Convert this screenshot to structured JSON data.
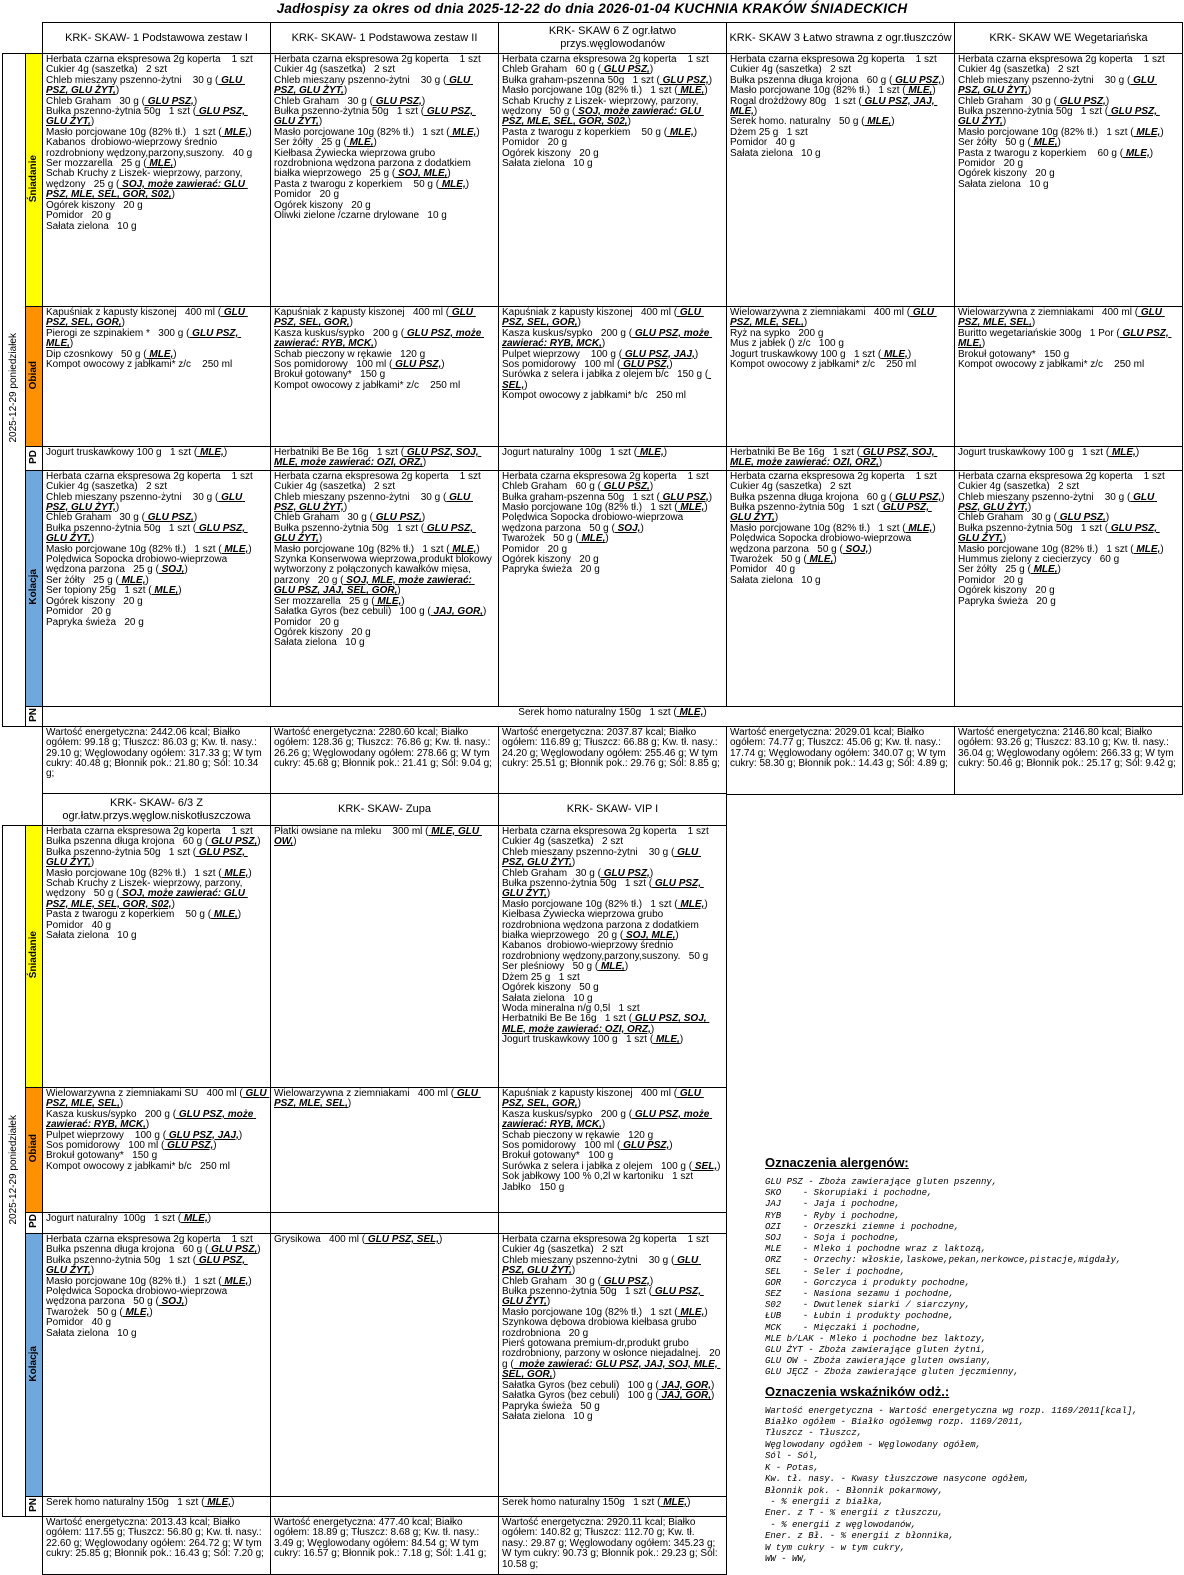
{
  "title": "Jadłospisy  za okres od dnia 2025-12-22 do dnia 2026-01-04 KUCHNIA KRAKÓW ŚNIADECKICH",
  "colors": {
    "sniadanie": "#FFFF00",
    "obiad": "#FF9000",
    "kolacja": "#6FA8DC",
    "plain": "#FFFFFF"
  },
  "sections": [
    {
      "date_label": "2025-12-29 poniedziałek",
      "columns": [
        "KRK- SKAW- 1 Podstawowa zestaw I",
        "KRK- SKAW- 1 Podstawowa zestaw II",
        "KRK- SKAW 6 Z ogr.łatwo przys.węglowodanów",
        "KRK- SKAW 3 Łatwo strawna z ogr.tłuszczów",
        "KRK- SKAW WE Wegetariańska"
      ],
      "meals": [
        {
          "label": "Śniadanie",
          "color_key": "sniadanie",
          "merged": false,
          "cells": [
            [
              "Herbata czarna ekspresowa 2g koperta    1 szt",
              "Cukier 4g (saszetka)   2 szt",
              "Chleb mieszany pszenno-żytni    30 g ( GLU PSZ, GLU ŻYT,)",
              "Chleb Graham   30 g ( GLU PSZ,)",
              "Bułka pszenno-żytnia 50g   1 szt ( GLU PSZ, GLU ŻYT,)",
              "Masło porcjowane 10g (82% tł.)   1 szt ( MLE,)",
              "Kabanos  drobiowo-wieprzowy średnio rozdrobniony wędzony,parzony,suszony.   40 g",
              "Ser mozzarella   25 g ( MLE,)",
              "Schab Kruchy z Liszek- wieprzowy, parzony, wędzony   25 g ( SOJ, może zawierać: GLU PSZ, MLE, SEL, GOR, S02,)",
              "Ogórek kiszony   20 g",
              "Pomidor   20 g",
              "Sałata zielona   10 g"
            ],
            [
              "Herbata czarna ekspresowa 2g koperta    1 szt",
              "Cukier 4g (saszetka)   2 szt",
              "Chleb mieszany pszenno-żytni    30 g ( GLU PSZ, GLU ŻYT,)",
              "Chleb Graham   30 g ( GLU PSZ,)",
              "Bułka pszenno-żytnia 50g   1 szt ( GLU PSZ, GLU ŻYT,)",
              "Masło porcjowane 10g (82% tł.)   1 szt ( MLE,)",
              "Ser żółty   25 g ( MLE,)",
              "Kiełbasa Żywiecka wieprzowa grubo rozdrobniona wędzona parzona z dodatkiem białka wieprzowego   25 g ( SOJ, MLE,)",
              "Pasta z twarogu z koperkiem    50 g ( MLE,)",
              "Pomidor   20 g",
              "Ogórek kiszony   20 g",
              "Oliwki zielone /czarne drylowane   10 g"
            ],
            [
              "Herbata czarna ekspresowa 2g koperta    1 szt",
              "Chleb Graham   60 g ( GLU PSZ,)",
              "Bułka graham-pszenna 50g   1 szt ( GLU PSZ,)",
              "Masło porcjowane 10g (82% tł.)   1 szt ( MLE,)",
              "Schab Kruchy z Liszek- wieprzowy, parzony, wędzony   50 g ( SOJ, może zawierać: GLU PSZ, MLE, SEL, GOR, S02,)",
              "Pasta z twarogu z koperkiem    50 g ( MLE,)",
              "Pomidor   20 g",
              "Ogórek kiszony   20 g",
              "Sałata zielona   10 g"
            ],
            [
              "Herbata czarna ekspresowa 2g koperta    1 szt",
              "Cukier 4g (saszetka)   2 szt",
              "Bułka pszenna długa krojona   60 g ( GLU PSZ,)",
              "Masło porcjowane 10g (82% tł.)   1 szt ( MLE,)",
              "Rogal drożdżowy 80g   1 szt ( GLU PSZ, JAJ, MLE,)",
              "Serek homo. naturalny   50 g ( MLE,)",
              "Dżem 25 g   1 szt",
              "Pomidor   40 g",
              "Sałata zielona   10 g"
            ],
            [
              "Herbata czarna ekspresowa 2g koperta    1 szt",
              "Cukier 4g (saszetka)   2 szt",
              "Chleb mieszany pszenno-żytni    30 g ( GLU PSZ, GLU ŻYT,)",
              "Chleb Graham   30 g ( GLU PSZ,)",
              "Bułka pszenno-żytnia 50g   1 szt ( GLU PSZ, GLU ŻYT,)",
              "Masło porcjowane 10g (82% tł.)   1 szt ( MLE,)",
              "Ser żółty   50 g ( MLE,)",
              "Pasta z twarogu z koperkiem    60 g ( MLE,)",
              "Pomidor   20 g",
              "Ogórek kiszony   20 g",
              "Sałata zielona   10 g"
            ]
          ]
        },
        {
          "label": "Obiad",
          "color_key": "obiad",
          "merged": false,
          "cells": [
            [
              "Kapuśniak z kapusty kiszonej   400 ml ( GLU PSZ, SEL, GOR,)",
              "Pierogi ze szpinakiem *   300 g ( GLU PSZ, MLE,)",
              "Dip czosnkowy   50 g ( MLE,)",
              "Kompot owocowy z jabłkami* z/c    250 ml"
            ],
            [
              "Kapuśniak z kapusty kiszonej   400 ml ( GLU PSZ, SEL, GOR,)",
              "Kasza kuskus/sypko   200 g ( GLU PSZ, może zawierać: RYB, MCK,)",
              "Schab pieczony w rękawie   120 g",
              "Sos pomidorowy   100 ml ( GLU PSZ,)",
              "Brokuł gotowany*   150 g",
              "Kompot owocowy z jabłkami* z/c    250 ml"
            ],
            [
              "Kapuśniak z kapusty kiszonej   400 ml ( GLU PSZ, SEL, GOR,)",
              "Kasza kuskus/sypko   200 g ( GLU PSZ, może zawierać: RYB, MCK,)",
              "Pulpet wieprzowy    100 g ( GLU PSZ, JAJ,)",
              "Sos pomidorowy   100 ml ( GLU PSZ,)",
              "Surówka z selera i jabłka z olejem b/c   150 g ( SEL,)",
              "Kompot owocowy z jabłkami* b/c   250 ml"
            ],
            [
              "Wielowarzywna z ziemniakami   400 ml ( GLU PSZ, MLE, SEL,)",
              "Ryż na sypko   200 g",
              "Mus z jabłek () z/c   100 g",
              "Jogurt truskawkowy 100 g   1 szt ( MLE,)",
              "Kompot owocowy z jabłkami* z/c    250 ml"
            ],
            [
              "Wielowarzywna z ziemniakami   400 ml ( GLU PSZ, MLE, SEL,)",
              "Buritto wegetariańskie 300g   1 Por ( GLU PSZ, MLE,)",
              "Brokuł gotowany*   150 g",
              "Kompot owocowy z jabłkami* z/c    250 ml"
            ]
          ]
        },
        {
          "label": "PD",
          "color_key": "plain",
          "merged": false,
          "cells": [
            [
              "Jogurt truskawkowy 100 g   1 szt ( MLE,)"
            ],
            [
              "Herbatniki Be Be 16g   1 szt ( GLU PSZ, SOJ, MLE, może zawierać: OZI, ORZ,)"
            ],
            [
              "Jogurt naturalny  100g   1 szt ( MLE,)"
            ],
            [
              "Herbatniki Be Be 16g   1 szt ( GLU PSZ, SOJ, MLE, może zawierać: OZI, ORZ,)"
            ],
            [
              "Jogurt truskawkowy 100 g   1 szt ( MLE,)"
            ]
          ]
        },
        {
          "label": "Kolacja",
          "color_key": "kolacja",
          "merged": false,
          "cells": [
            [
              "Herbata czarna ekspresowa 2g koperta    1 szt",
              "Cukier 4g (saszetka)   2 szt",
              "Chleb mieszany pszenno-żytni    30 g ( GLU PSZ, GLU ŻYT,)",
              "Chleb Graham   30 g ( GLU PSZ,)",
              "Bułka pszenno-żytnia 50g   1 szt ( GLU PSZ, GLU ŻYT,)",
              "Masło porcjowane 10g (82% tł.)   1 szt ( MLE,)",
              "Polędwica Sopocka drobiowo-wieprzowa wędzona parzona   25 g ( SOJ,)",
              "Ser żółty   25 g ( MLE,)",
              "Ser topiony 25g   1 szt ( MLE,)",
              "Ogórek kiszony   20 g",
              "Pomidor   20 g",
              "Papryka świeża   20 g"
            ],
            [
              "Herbata czarna ekspresowa 2g koperta    1 szt",
              "Cukier 4g (saszetka)   2 szt",
              "Chleb mieszany pszenno-żytni    30 g ( GLU PSZ, GLU ŻYT,)",
              "Chleb Graham   30 g ( GLU PSZ,)",
              "Bułka pszenno-żytnia 50g   1 szt ( GLU PSZ, GLU ŻYT,)",
              "Masło porcjowane 10g (82% tł.)   1 szt ( MLE,)",
              "Szynka Konserwowa wieprzowa,produkt blokowy wytworzony z połączonych kawałków mięsa, parzony   20 g ( SOJ, MLE, może zawierać: GLU PSZ, JAJ, SEL, GOR,)",
              "Ser mozzarella   25 g ( MLE,)",
              "Sałatka Gyros (bez cebuli)   100 g ( JAJ, GOR,)",
              "Pomidor   20 g",
              "Ogórek kiszony   20 g",
              "Sałata zielona   10 g"
            ],
            [
              "Herbata czarna ekspresowa 2g koperta    1 szt",
              "Chleb Graham   60 g ( GLU PSZ,)",
              "Bułka graham-pszenna 50g   1 szt ( GLU PSZ,)",
              "Masło porcjowane 10g (82% tł.)   1 szt ( MLE,)",
              "Polędwica Sopocka drobiowo-wieprzowa wędzona parzona   50 g ( SOJ,)",
              "Twarożek   50 g ( MLE,)",
              "Pomidor   20 g",
              "Ogórek kiszony   20 g",
              "Papryka świeża   20 g"
            ],
            [
              "Herbata czarna ekspresowa 2g koperta    1 szt",
              "Cukier 4g (saszetka)   2 szt",
              "Bułka pszenna długa krojona   60 g ( GLU PSZ,)",
              "Bułka pszenno-żytnia 50g   1 szt ( GLU PSZ, GLU ŻYT,)",
              "Masło porcjowane 10g (82% tł.)   1 szt ( MLE,)",
              "Polędwica Sopocka drobiowo-wieprzowa wędzona parzona   50 g ( SOJ,)",
              "Twarożek   50 g ( MLE,)",
              "Pomidor   40 g",
              "Sałata zielona   10 g"
            ],
            [
              "Herbata czarna ekspresowa 2g koperta    1 szt",
              "Cukier 4g (saszetka)   2 szt",
              "Chleb mieszany pszenno-żytni    30 g ( GLU PSZ, GLU ŻYT,)",
              "Chleb Graham   30 g ( GLU PSZ,)",
              "Bułka pszenno-żytnia 50g   1 szt ( GLU PSZ, GLU ŻYT,)",
              "Masło porcjowane 10g (82% tł.)   1 szt ( MLE,)",
              "Hummus zielony z ciecierzycy   60 g",
              "Ser żółty   25 g ( MLE,)",
              "Pomidor   20 g",
              "Ogórek kiszony   20 g",
              "Papryka świeża   20 g"
            ]
          ]
        },
        {
          "label": "PN",
          "color_key": "plain",
          "merged": true,
          "cells": [
            [
              "Serek homo naturalny 150g   1 szt ( MLE,)"
            ]
          ]
        }
      ],
      "nutrition": [
        "Wartość energetyczna: 2442.06 kcal; Białko ogółem: 99.18 g; Tłuszcz: 86.03 g; Kw. tł. nasy.: 29.10 g; Węglowodany ogółem: 317.33 g; W tym cukry: 40.48 g; Błonnik pok.: 21.80 g; Sól: 10.34 g;",
        "Wartość energetyczna: 2280.60 kcal; Białko ogółem: 128.36 g; Tłuszcz: 76.86 g; Kw. tł. nasy.: 26.26 g; Węglowodany ogółem: 278.66 g; W tym cukry: 45.68 g; Błonnik pok.: 21.41 g; Sól: 9.04 g;",
        "Wartość energetyczna: 2037.87 kcal; Białko ogółem: 116.89 g; Tłuszcz: 66.88 g; Kw. tł. nasy.: 24.20 g; Węglowodany ogółem: 255.46 g; W tym cukry: 25.51 g; Błonnik pok.: 29.76 g; Sól: 8.85 g;",
        "Wartość energetyczna: 2029.01 kcal; Białko ogółem: 74.77 g; Tłuszcz: 45.06 g; Kw. tł. nasy.: 17.74 g; Węglowodany ogółem: 340.07 g; W tym cukry: 58.30 g; Błonnik pok.: 14.43 g; Sól: 4.89 g;",
        "Wartość energetyczna: 2146.80 kcal; Białko ogółem: 93.26 g; Tłuszcz: 83.10 g; Kw. tł. nasy.: 36.04 g; Węglowodany ogółem: 266.33 g; W tym cukry: 50.46 g; Błonnik pok.: 25.17 g; Sól: 9.42 g;"
      ]
    },
    {
      "date_label": "2025-12-29 poniedziałek",
      "columns": [
        "KRK- SKAW- 6/3 Z ogr.łatw.przys.węglow.niskotłuszczowa",
        "KRK- SKAW- Zupa",
        "KRK- SKAW- VIP I"
      ],
      "meals": [
        {
          "label": "Śniadanie",
          "color_key": "sniadanie",
          "merged": false,
          "cells": [
            [
              "Herbata czarna ekspresowa 2g koperta    1 szt",
              "Bułka pszenna długa krojona   60 g ( GLU PSZ,)",
              "Bułka pszenno-żytnia 50g   1 szt ( GLU PSZ, GLU ŻYT,)",
              "Masło porcjowane 10g (82% tł.)   1 szt ( MLE,)",
              "Schab Kruchy z Liszek- wieprzowy, parzony, wędzony   50 g ( SOJ, może zawierać: GLU PSZ, MLE, SEL, GOR, S02,)",
              "Pasta z twarogu z koperkiem    50 g ( MLE,)",
              "Pomidor   40 g",
              "Sałata zielona   10 g"
            ],
            [
              "Płatki owsiane na mleku    300 ml ( MLE, GLU OW,)"
            ],
            [
              "Herbata czarna ekspresowa 2g koperta    1 szt",
              "Cukier 4g (saszetka)   2 szt",
              "Chleb mieszany pszenno-żytni    30 g ( GLU PSZ, GLU ŻYT,)",
              "Chleb Graham   30 g ( GLU PSZ,)",
              "Bułka pszenno-żytnia 50g   1 szt ( GLU PSZ, GLU ŻYT,)",
              "Masło porcjowane 10g (82% tł.)   1 szt ( MLE,)",
              "Kiełbasa Żywiecka wieprzowa grubo rozdrobniona wędzona parzona z dodatkiem białka wieprzowego   20 g ( SOJ, MLE,)",
              "Kabanos  drobiowo-wieprzowy średnio rozdrobniony wędzony,parzony,suszony.   50 g",
              "Ser pleśniowy   50 g ( MLE,)",
              "Dżem 25 g   1 szt",
              "Ogórek kiszony   50 g",
              "Sałata zielona   10 g",
              "Woda mineralna n/g 0,5l   1 szt",
              "Herbatniki Be Be 16g   1 szt ( GLU PSZ, SOJ, MLE, może zawierać: OZI, ORZ,)",
              "Jogurt truskawkowy 100 g   1 szt ( MLE,)"
            ]
          ]
        },
        {
          "label": "Obiad",
          "color_key": "obiad",
          "merged": false,
          "cells": [
            [
              "Wielowarzywna z ziemniakami SU   400 ml ( GLU PSZ, MLE, SEL,)",
              "Kasza kuskus/sypko   200 g ( GLU PSZ, może zawierać: RYB, MCK,)",
              "Pulpet wieprzowy    100 g ( GLU PSZ, JAJ,)",
              "Sos pomidorowy   100 ml ( GLU PSZ,)",
              "Brokuł gotowany*   150 g",
              "Kompot owocowy z jabłkami* b/c   250 ml"
            ],
            [
              "Wielowarzywna z ziemniakami   400 ml ( GLU PSZ, MLE, SEL,)"
            ],
            [
              "Kapuśniak z kapusty kiszonej   400 ml ( GLU PSZ, SEL, GOR,)",
              "Kasza kuskus/sypko   200 g ( GLU PSZ, może zawierać: RYB, MCK,)",
              "Schab pieczony w rękawie   120 g",
              "Sos pomidorowy   100 ml ( GLU PSZ,)",
              "Brokuł gotowany*   100 g",
              "Surówka z selera i jabłka z olejem   100 g ( SEL,)",
              "Sok jabłkowy 100 % 0,2l w kartoniku   1 szt",
              "Jabłko   150 g"
            ]
          ]
        },
        {
          "label": "PD",
          "color_key": "plain",
          "merged": false,
          "cells": [
            [
              "Jogurt naturalny  100g   1 szt ( MLE,)"
            ],
            [],
            []
          ]
        },
        {
          "label": "Kolacja",
          "color_key": "kolacja",
          "merged": false,
          "cells": [
            [
              "Herbata czarna ekspresowa 2g koperta    1 szt",
              "Bułka pszenna długa krojona   60 g ( GLU PSZ,)",
              "Bułka pszenno-żytnia 50g   1 szt ( GLU PSZ, GLU ŻYT,)",
              "Masło porcjowane 10g (82% tł.)   1 szt ( MLE,)",
              "Polędwica Sopocka drobiowo-wieprzowa wędzona parzona   50 g ( SOJ,)",
              "Twarożek   50 g ( MLE,)",
              "Pomidor   40 g",
              "Sałata zielona   10 g"
            ],
            [
              "Grysikowa   400 ml ( GLU PSZ, SEL,)"
            ],
            [
              "Herbata czarna ekspresowa 2g koperta    1 szt",
              "Cukier 4g (saszetka)   2 szt",
              "Chleb mieszany pszenno-żytni    30 g ( GLU PSZ, GLU ŻYT,)",
              "Chleb Graham   30 g ( GLU PSZ,)",
              "Bułka pszenno-żytnia 50g   1 szt ( GLU PSZ, GLU ŻYT,)",
              "Masło porcjowane 10g (82% tł.)   1 szt ( MLE,)",
              "Szynkowa dębowa drobiowa kiełbasa grubo rozdrobniona   20 g",
              "Pierś gotowana premium-dr,produkt grubo rozdrobniony, parzony w osłonce niejadalnej.   20 g (  może zawierać: GLU PSZ, JAJ, SOJ, MLE, SEL, GOR,)",
              "Sałatka Gyros (bez cebuli)   100 g ( JAJ, GOR,)",
              "Sałatka Gyros (bez cebuli)   100 g ( JAJ, GOR,)",
              "Papryka świeża   50 g",
              "Sałata zielona   10 g"
            ]
          ]
        },
        {
          "label": "PN",
          "color_key": "plain",
          "merged": false,
          "cells": [
            [
              "Serek homo naturalny 150g   1 szt ( MLE,)"
            ],
            [],
            [
              "Serek homo naturalny 150g   1 szt ( MLE,)"
            ]
          ]
        }
      ],
      "nutrition": [
        "Wartość energetyczna: 2013.43 kcal; Białko ogółem: 117.55 g; Tłuszcz: 56.80 g; Kw. tł. nasy.: 22.60 g; Węglowodany ogółem: 264.72 g; W tym cukry: 25.85 g; Błonnik pok.: 16.43 g; Sól: 7.20 g;",
        "Wartość energetyczna: 477.40 kcal; Białko ogółem: 18.89 g; Tłuszcz: 8.68 g; Kw. tł. nasy.: 3.49 g; Węglowodany ogółem: 84.54 g; W tym cukry: 16.57 g; Błonnik pok.: 7.18 g; Sól: 1.41 g;",
        "Wartość energetyczna: 2920.11 kcal; Białko ogółem: 140.82 g; Tłuszcz: 112.70 g; Kw. tł. nasy.: 29.87 g; Węglowodany ogółem: 345.23 g; W tym cukry: 90.73 g; Błonnik pok.: 29.23 g; Sól: 10.58 g;"
      ]
    }
  ],
  "legend": {
    "allergens_title": "Oznaczenia alergenów:",
    "allergens": [
      "GLU PSZ - Zboża zawierające gluten pszenny,",
      "SKO    - Skorupiaki i pochodne,",
      "JAJ    - Jaja i pochodne,",
      "RYB    - Ryby i pochodne,",
      "OZI    - Orzeszki ziemne i pochodne,",
      "SOJ    - Soja i pochodne,",
      "MLE    - Mleko i pochodne wraz z laktozą,",
      "ORZ    - Orzechy: włoskie,laskowe,pekan,nerkowce,pistacje,migdały,",
      "SEL    - Seler i pochodne,",
      "GOR    - Gorczyca i produkty pochodne,",
      "SEZ    - Nasiona sezamu i pochodne,",
      "S02    - Dwutlenek siarki / siarczyny,",
      "ŁUB    - Łubin i produkty pochodne,",
      "MCK    - Mięczaki i pochodne,",
      "MLE b/LAK - Mleko i pochodne bez laktozy,",
      "GLU ŻYT - Zboża zawierające gluten żytni,",
      "GLU OW - Zboża zawierające gluten owsiany,",
      "GLU JĘCZ - Zboża zawierające gluten jęczmienny,"
    ],
    "indicators_title": "Oznaczenia wskaźników odż.:",
    "indicators": [
      "Wartość energetyczna - Wartość energetyczna wg rozp. 1169/2011[kcal],",
      "Białko ogółem - Białko ogółemwg rozp. 1169/2011,",
      "Tłuszcz - Tłuszcz,",
      "Węglowodany ogółem - Węglowodany ogółem,",
      "Sól - Sól,",
      "K - Potas,",
      "Kw. tł. nasy. - Kwasy tłuszczowe nasycone ogółem,",
      "Błonnik pok. - Błonnik pokarmowy,",
      " - % energii z białka,",
      "Ener. z T - % energii z tłuszczu,",
      " - % energii z węglowodanów,",
      "Ener. z Bł. - % energii z błonnika,",
      "W tym cukry - w tym cukry,",
      "WW - WW,"
    ]
  }
}
